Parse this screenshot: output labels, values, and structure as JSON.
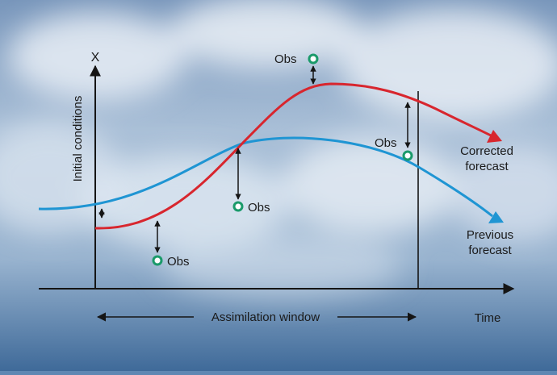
{
  "axes": {
    "y_label": "X",
    "y_title": "Initial conditions",
    "x_label": "Time",
    "window_label": "Assimilation window"
  },
  "curves": {
    "corrected": {
      "label_line1": "Corrected",
      "label_line2": "forecast",
      "color": "#d8262e"
    },
    "previous": {
      "label_line1": "Previous",
      "label_line2": "forecast",
      "color": "#1f95d3"
    }
  },
  "observations": {
    "marker_color": "#1a9a6a",
    "items": [
      {
        "label": "Obs"
      },
      {
        "label": "Obs"
      },
      {
        "label": "Obs"
      },
      {
        "label": "Obs"
      }
    ]
  },
  "colors": {
    "axis": "#151515",
    "text": "#1a1a1a"
  }
}
